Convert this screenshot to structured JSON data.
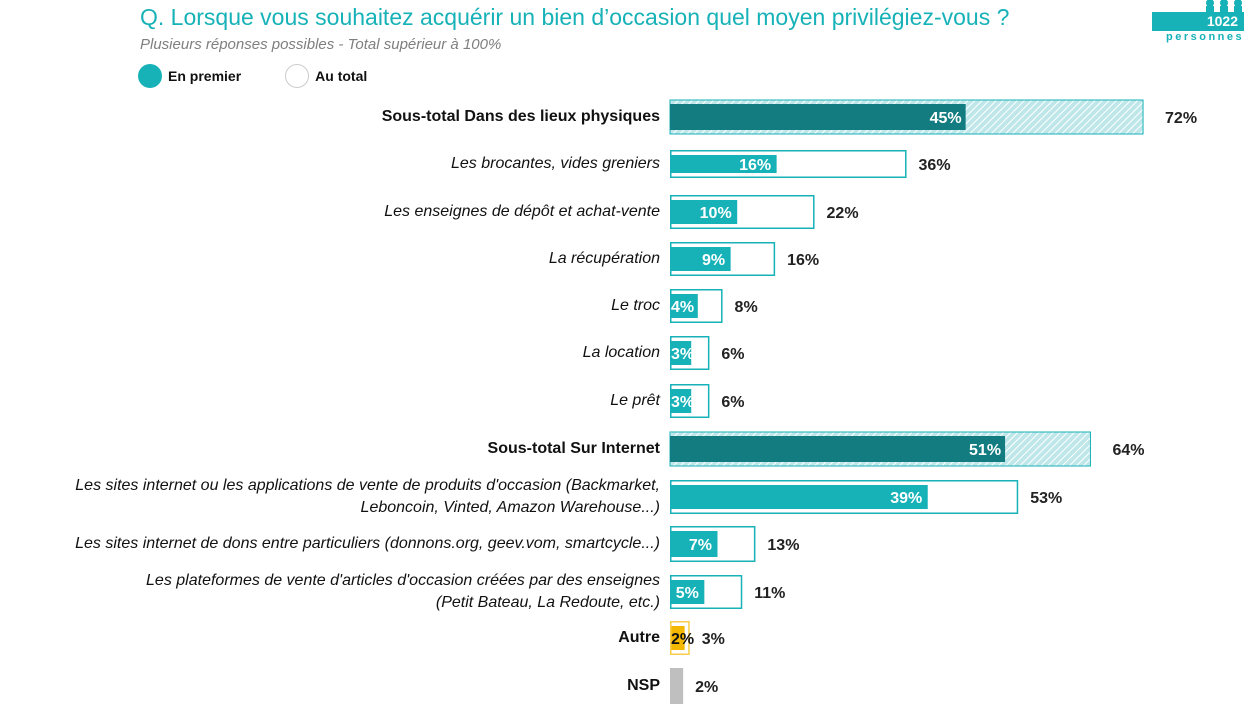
{
  "header": {
    "title": "Q. Lorsque vous souhaitez acquérir un bien d’occasion quel moyen privilégiez-vous ?",
    "subtitle": "Plusieurs réponses possibles - Total supérieur à 100%",
    "badge_count": "1022",
    "badge_label": "personnes",
    "badge_icon": "people-icon"
  },
  "legend": [
    {
      "label": "En premier",
      "style": "filled",
      "color": "#17b2b8"
    },
    {
      "label": "Au total",
      "style": "outline",
      "color": "#cccccc"
    }
  ],
  "colors": {
    "accent": "#17b2b8",
    "subtotal": "#127c80",
    "other": "#f5b800",
    "nsp": "#bfbfbf",
    "text": "#111111"
  },
  "chart_data": {
    "type": "bar",
    "orientation": "horizontal",
    "title": "Q. Lorsque vous souhaitez acquérir un bien d’occasion quel moyen privilégiez-vous ?",
    "subtitle": "Plusieurs réponses possibles - Total supérieur à 100%",
    "unit": "%",
    "xlim": [
      0,
      100
    ],
    "grid": false,
    "legend_position": "top-left",
    "series": [
      {
        "name": "En premier",
        "values": [
          45,
          16,
          10,
          9,
          4,
          3,
          3,
          51,
          39,
          7,
          5,
          2,
          null
        ]
      },
      {
        "name": "Au total",
        "values": [
          72,
          36,
          22,
          16,
          8,
          6,
          6,
          64,
          53,
          13,
          11,
          3,
          2
        ]
      }
    ],
    "categories": [
      {
        "label": "Sous-total Dans des lieux physiques",
        "kind": "subtotal",
        "first": 45,
        "total": 72,
        "first_label": "45%",
        "total_label": "72%"
      },
      {
        "label": "Les brocantes, vides greniers",
        "kind": "item",
        "first": 16,
        "total": 36,
        "first_label": "16%",
        "total_label": "36%"
      },
      {
        "label": "Les enseignes de dépôt et achat-vente",
        "kind": "item",
        "first": 10,
        "total": 22,
        "first_label": "10%",
        "total_label": "22%"
      },
      {
        "label": "La récupération",
        "kind": "item",
        "first": 9,
        "total": 16,
        "first_label": "9%",
        "total_label": "16%"
      },
      {
        "label": "Le troc",
        "kind": "item",
        "first": 4,
        "total": 8,
        "first_label": "4%",
        "total_label": "8%"
      },
      {
        "label": "La location",
        "kind": "item",
        "first": 3,
        "total": 6,
        "first_label": "3%",
        "total_label": "6%"
      },
      {
        "label": "Le prêt",
        "kind": "item",
        "first": 3,
        "total": 6,
        "first_label": "3%",
        "total_label": "6%"
      },
      {
        "label": "Sous-total Sur Internet",
        "kind": "subtotal",
        "first": 51,
        "total": 64,
        "first_label": "51%",
        "total_label": "64%"
      },
      {
        "label": "Les sites internet ou les applications de vente de produits d'occasion (Backmarket,|Leboncoin, Vinted, Amazon Warehouse...)",
        "kind": "item",
        "first": 39,
        "total": 53,
        "first_label": "39%",
        "total_label": "53%"
      },
      {
        "label": "Les sites internet de dons entre particuliers (donnons.org, geev.vom, smartcycle...)",
        "kind": "item",
        "first": 7,
        "total": 13,
        "first_label": "7%",
        "total_label": "13%"
      },
      {
        "label": "Les plateformes de vente d'articles d'occasion créées par des enseignes|(Petit Bateau, La Redoute, etc.)",
        "kind": "item",
        "first": 5,
        "total": 11,
        "first_label": "5%",
        "total_label": "11%"
      },
      {
        "label": "Autre",
        "kind": "other",
        "first": 2,
        "total": 3,
        "first_label": "2%",
        "total_label": "3%"
      },
      {
        "label": "NSP",
        "kind": "nsp",
        "first": null,
        "total": 2,
        "first_label": "",
        "total_label": "2%"
      }
    ]
  }
}
